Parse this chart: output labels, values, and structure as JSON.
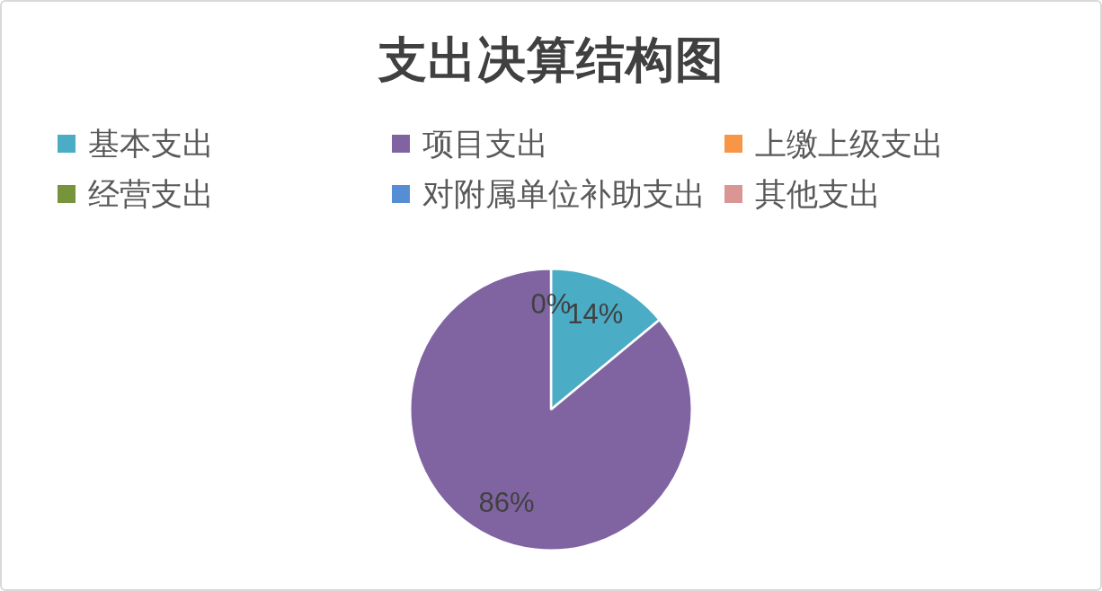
{
  "chart_data": {
    "type": "pie",
    "title": "支出决算结构图",
    "categories": [
      "基本支出",
      "项目支出",
      "上缴上级支出",
      "经营支出",
      "对附属单位补助支出",
      "其他支出"
    ],
    "values": [
      14,
      86,
      0,
      0,
      0,
      0
    ],
    "colors": [
      "#4bacc6",
      "#8064a2",
      "#f79646",
      "#77933c",
      "#558ed5",
      "#d99694"
    ],
    "value_labels": [
      "14%",
      "86%",
      "0%",
      null,
      null,
      null
    ],
    "legend": "top"
  }
}
